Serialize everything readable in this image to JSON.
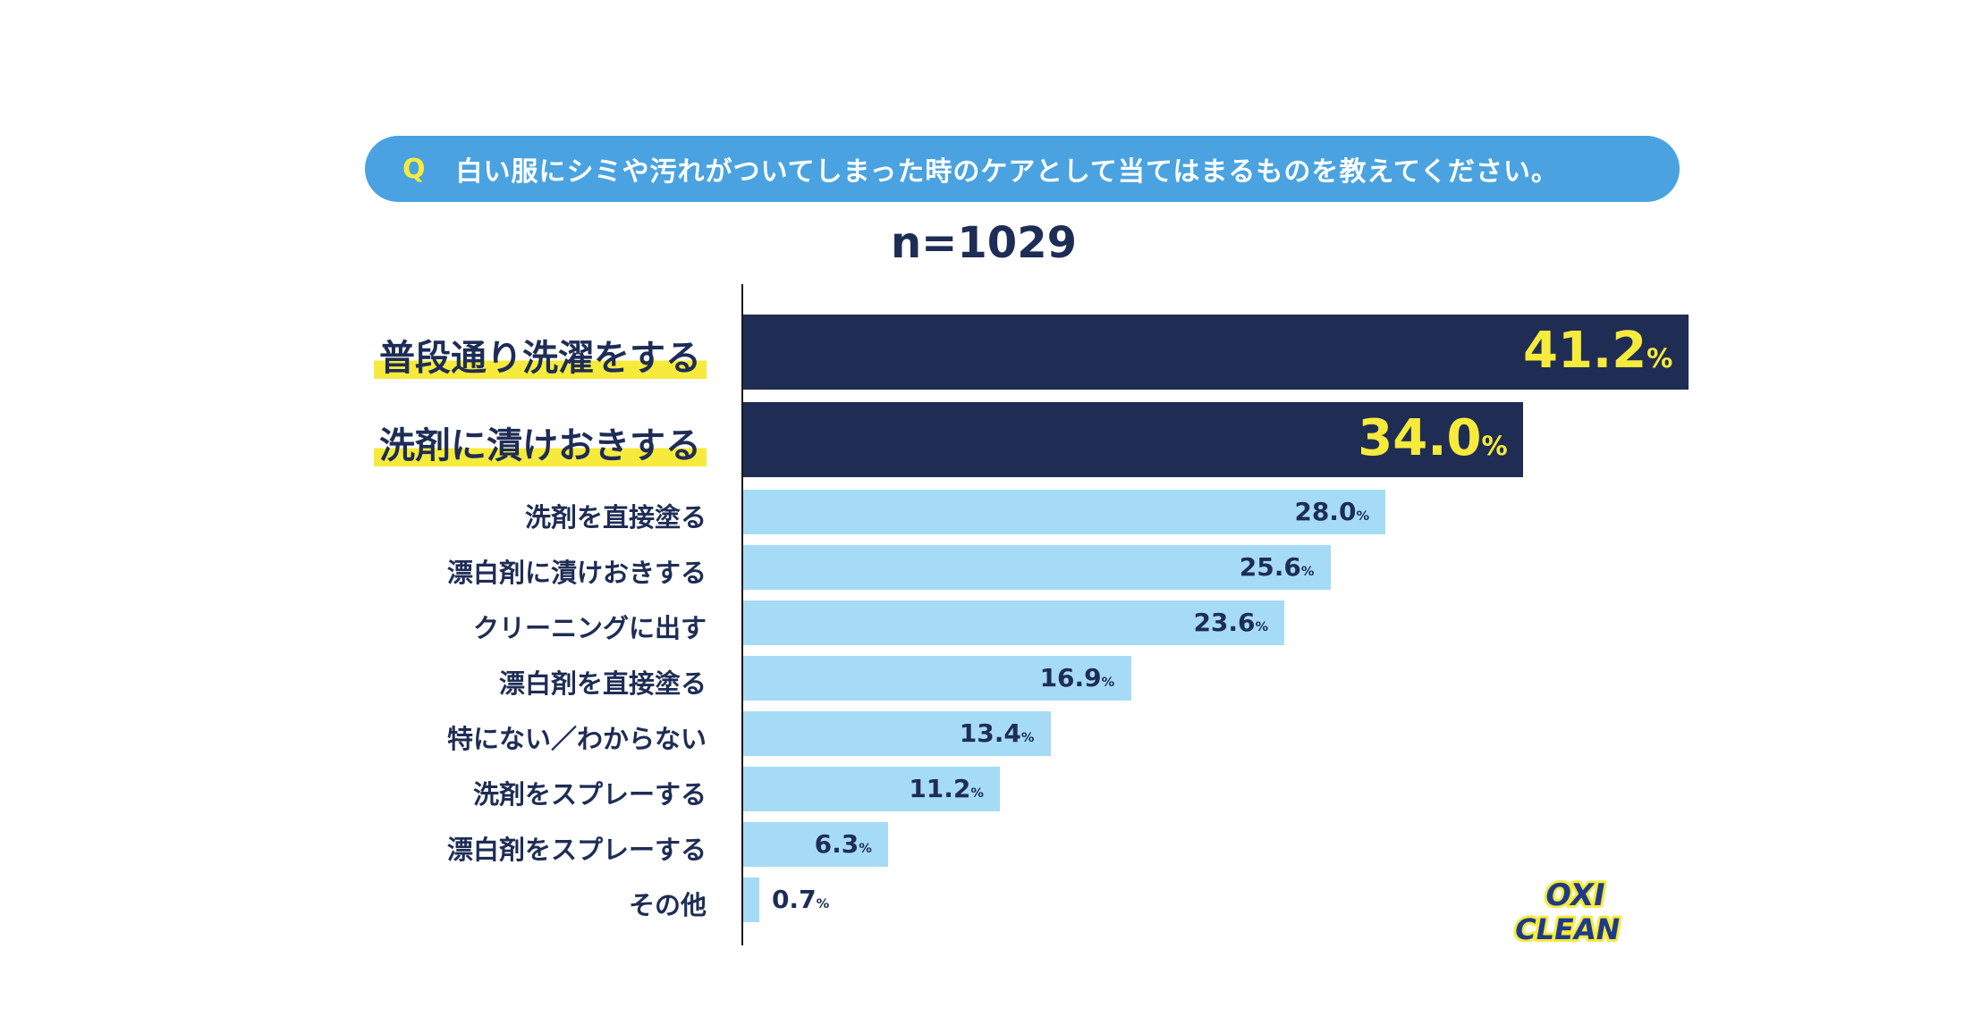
{
  "question": {
    "mark": "Q",
    "text": "白い服にシミや汚れがついてしまった時のケアとして当てはまるものを教えてください。"
  },
  "sample": "n=1029",
  "unit_suffix": "%",
  "brand": {
    "line1": "OXI",
    "line2": "CLEAN"
  },
  "colors": {
    "accent_blue": "#4aa3e0",
    "dark_bar": "#1f2d54",
    "light_bar": "#a6dbf6",
    "highlight": "#f6eb3c",
    "text": "#1e2d55"
  },
  "chart_data": {
    "type": "bar",
    "orientation": "horizontal",
    "title": "白い服にシミや汚れがついてしまった時のケアとして当てはまるものを教えてください。",
    "subtitle": "n=1029",
    "xlabel": "",
    "ylabel": "",
    "xlim": [
      0,
      41.2
    ],
    "grid": false,
    "categories": [
      "普段通り洗濯をする",
      "洗剤に漬けおきする",
      "洗剤を直接塗る",
      "漂白剤に漬けおきする",
      "クリーニングに出す",
      "漂白剤を直接塗る",
      "特にない／わからない",
      "洗剤をスプレーする",
      "漂白剤をスプレーする",
      "その他"
    ],
    "values": [
      41.2,
      34.0,
      28.0,
      25.6,
      23.6,
      16.9,
      13.4,
      11.2,
      6.3,
      0.7
    ],
    "labels": [
      "41.2",
      "34.0",
      "28.0",
      "25.6",
      "23.6",
      "16.9",
      "13.4",
      "11.2",
      "6.3",
      "0.7"
    ],
    "highlighted": [
      true,
      true,
      false,
      false,
      false,
      false,
      false,
      false,
      false,
      false
    ]
  }
}
